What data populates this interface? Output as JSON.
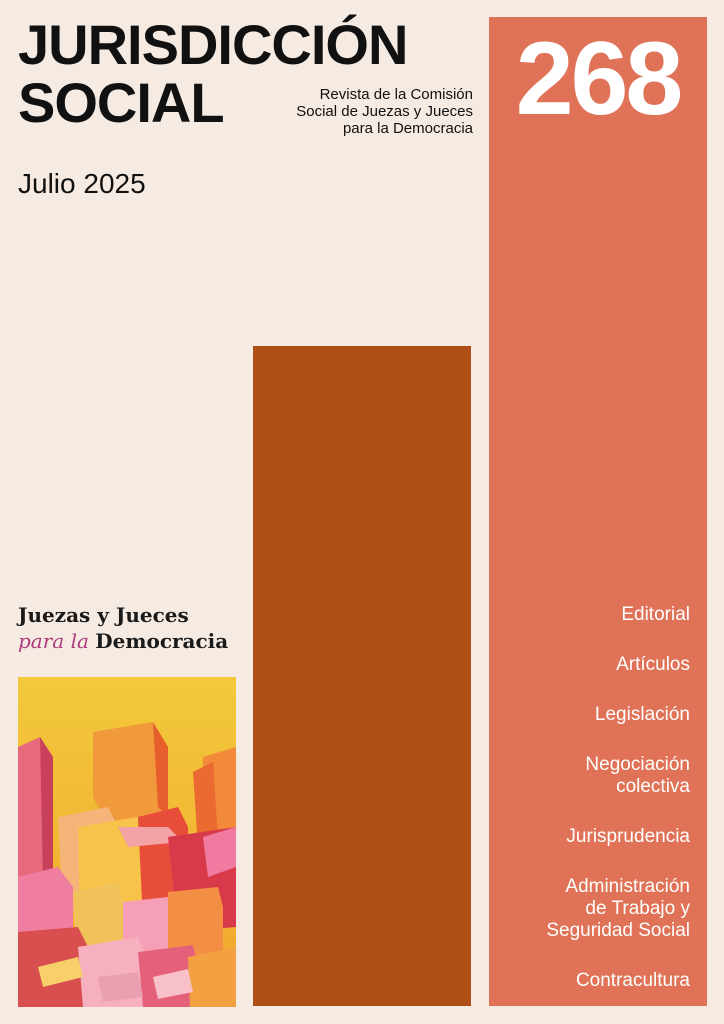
{
  "cover": {
    "title_line1": "JURISDICCIÓN",
    "title_line2": "SOCIAL",
    "subtitle_lines": [
      "Revista de la Comisión",
      "Social de Juezas y Jueces",
      "para la Democracia"
    ],
    "date": "Julio 2025",
    "issue_number": "268"
  },
  "logo": {
    "line1": "Juezas y Jueces",
    "line2_italic": "para la",
    "line2_bold": "Democracia"
  },
  "sections": [
    {
      "lines": [
        "Editorial"
      ]
    },
    {
      "lines": [
        "Artículos"
      ]
    },
    {
      "lines": [
        "Legislación"
      ]
    },
    {
      "lines": [
        "Negociación",
        "colectiva"
      ]
    },
    {
      "lines": [
        "Jurisprudencia"
      ]
    },
    {
      "lines": [
        "Administración",
        "de Trabajo y",
        "Seguridad Social"
      ]
    },
    {
      "lines": [
        "Contracultura"
      ]
    }
  ],
  "colors": {
    "background": "#f6ebe2",
    "dark_bar": "#b04e18",
    "light_bar": "#e07357",
    "logo_accent": "#b03a7a"
  },
  "painting": {
    "icon": "abstract-houses-painting"
  }
}
